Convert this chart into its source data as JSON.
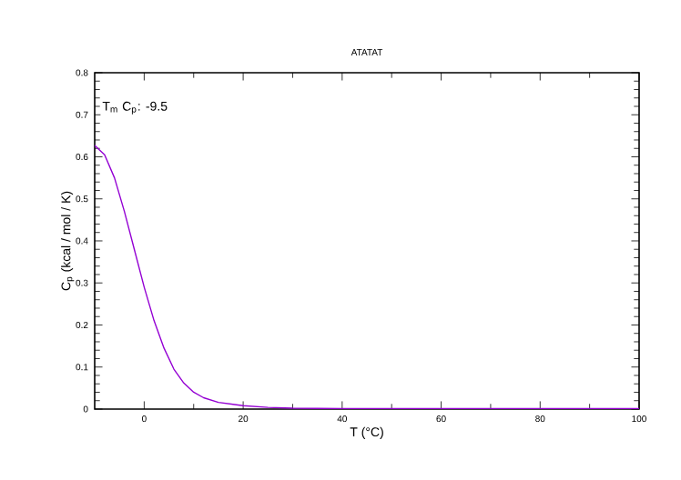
{
  "chart_data": {
    "type": "line",
    "title": "ATATAT",
    "xlabel": "T (°C)",
    "ylabel": "C$_{p}$ (kcal / mol / K)",
    "annotations": [
      "T$_{m}$ C$_{p}$: -9.5"
    ],
    "xlim": [
      -10,
      100
    ],
    "ylim": [
      0,
      0.8
    ],
    "xticks": [
      0,
      20,
      40,
      60,
      80,
      100
    ],
    "yticks": [
      0,
      0.1,
      0.2,
      0.3,
      0.4,
      0.5,
      0.6,
      0.7,
      0.8
    ],
    "grid": false,
    "series": [
      {
        "color": "#9400d3",
        "x": [
          -10,
          -8,
          -6,
          -4,
          -2,
          0,
          2,
          4,
          6,
          8,
          10,
          12,
          15,
          20,
          25,
          30,
          40,
          50,
          60,
          70,
          80,
          90,
          100
        ],
        "values": [
          0.627,
          0.605,
          0.55,
          0.47,
          0.38,
          0.29,
          0.21,
          0.145,
          0.095,
          0.062,
          0.04,
          0.027,
          0.016,
          0.008,
          0.004,
          0.002,
          0.001,
          0.001,
          0.001,
          0.001,
          0.001,
          0.001,
          0.001
        ]
      }
    ]
  }
}
